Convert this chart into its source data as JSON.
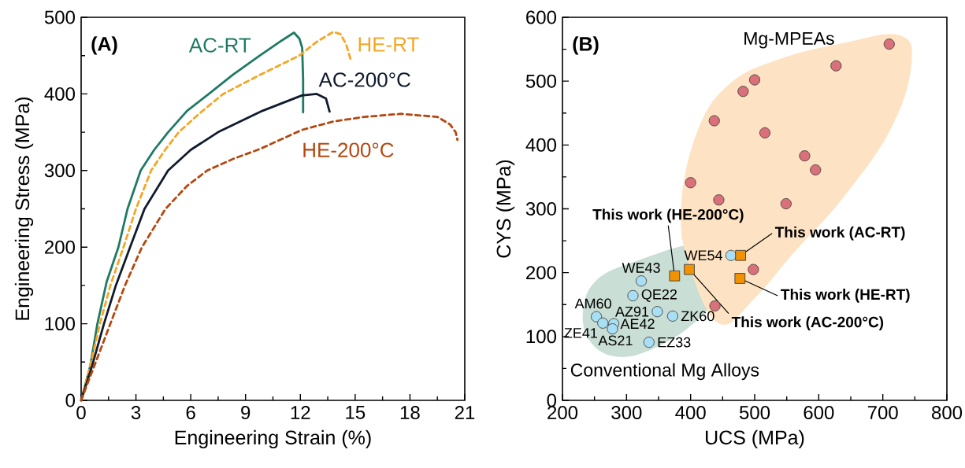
{
  "chart_data": [
    {
      "type": "line",
      "title": "(A)",
      "xlabel": "Engineering Strain (%)",
      "ylabel": "Engineering Stress (MPa)",
      "xlim": [
        0,
        21
      ],
      "ylim": [
        0,
        500
      ],
      "xticks": [
        0,
        {
          "value": 1.5,
          "label": null
        },
        3,
        {
          "value": 4.5,
          "label": null
        },
        6,
        {
          "value": 7.5,
          "label": null
        },
        9,
        {
          "value": 10.5,
          "label": null
        },
        12,
        {
          "value": 13.5,
          "label": null
        },
        15,
        {
          "value": 16.5,
          "label": null
        },
        18,
        {
          "value": 19.5,
          "label": null
        },
        21
      ],
      "yticks": [
        0,
        {
          "value": 50,
          "label": null
        },
        100,
        {
          "value": 150,
          "label": null
        },
        200,
        {
          "value": 250,
          "label": null
        },
        300,
        {
          "value": 350,
          "label": null
        },
        400,
        {
          "value": 450,
          "label": null
        },
        500
      ],
      "series": [
        {
          "name": "AC-RT",
          "color": "#1f7a64",
          "line_style": "solid",
          "x": [
            0,
            0.5,
            0.89,
            1.4,
            2.04,
            2.54,
            3.26,
            4.0,
            4.76,
            5.8,
            6.99,
            8.3,
            9.78,
            11.0,
            11.65,
            11.95,
            12.1,
            12.15,
            12.15
          ],
          "values": [
            0,
            45,
            100,
            155,
            200,
            250,
            300,
            327,
            350,
            378,
            400,
            425,
            450,
            470,
            480,
            472,
            460,
            420,
            376
          ]
        },
        {
          "name": "HE-RT",
          "color": "#f5a623",
          "line_style": "dashed",
          "x": [
            0,
            0.5,
            1.03,
            1.6,
            2.32,
            3.0,
            3.83,
            4.6,
            5.34,
            6.5,
            7.78,
            9.8,
            11.94,
            12.9,
            13.8,
            14.2,
            14.5,
            14.75
          ],
          "values": [
            0,
            45,
            100,
            150,
            200,
            250,
            300,
            327,
            350,
            375,
            400,
            425,
            450,
            468,
            481,
            478,
            465,
            445
          ]
        },
        {
          "name": "AC-200°C",
          "color": "#111a2e",
          "line_style": "solid",
          "x": [
            0,
            0.6,
            1.25,
            1.9,
            2.68,
            3.47,
            4.76,
            6.0,
            7.49,
            9.93,
            12.08,
            12.9,
            13.4,
            13.6
          ],
          "values": [
            0,
            45,
            100,
            150,
            200,
            250,
            300,
            327,
            350,
            378,
            398,
            400,
            394,
            377
          ]
        },
        {
          "name": "HE-200°C",
          "color": "#b5470f",
          "line_style": "dashed",
          "x": [
            0,
            0.8,
            1.6,
            2.4,
            3.33,
            4.62,
            5.8,
            6.9,
            8.3,
            9.78,
            12.08,
            13.8,
            15.5,
            17.5,
            19.5,
            20.2,
            20.5,
            20.6
          ],
          "values": [
            0,
            50,
            100,
            150,
            200,
            250,
            280,
            300,
            315,
            328,
            353,
            364,
            370,
            374,
            370,
            360,
            350,
            340
          ]
        }
      ]
    },
    {
      "type": "scatter",
      "title": "(B)",
      "xlabel": "UCS (MPa)",
      "ylabel": "CYS (MPa)",
      "xlim": [
        200,
        800
      ],
      "ylim": [
        0,
        600
      ],
      "xticks": [
        200,
        {
          "value": 250,
          "label": null
        },
        300,
        {
          "value": 350,
          "label": null
        },
        400,
        {
          "value": 450,
          "label": null
        },
        500,
        {
          "value": 550,
          "label": null
        },
        600,
        {
          "value": 650,
          "label": null
        },
        700,
        {
          "value": 750,
          "label": null
        },
        800
      ],
      "yticks": [
        0,
        {
          "value": 50,
          "label": null
        },
        100,
        {
          "value": 150,
          "label": null
        },
        200,
        {
          "value": 250,
          "label": null
        },
        300,
        {
          "value": 350,
          "label": null
        },
        400,
        {
          "value": 450,
          "label": null
        },
        500,
        {
          "value": 550,
          "label": null
        },
        600
      ],
      "series": [
        {
          "name": "Mg-MPEAs",
          "color": "#d9707a",
          "marker": "circle",
          "x": [
            710,
            627,
            500,
            482,
            437,
            516,
            578,
            595,
            400,
            444,
            549,
            498,
            438
          ],
          "values": [
            558,
            524,
            502,
            484,
            438,
            419,
            383,
            361,
            341,
            314,
            308,
            205,
            148
          ]
        },
        {
          "name": "Conventional Mg Alloys",
          "color": "#a9dff5",
          "marker": "circle",
          "x": [
            463,
            323,
            310,
            348,
            372,
            253,
            263,
            280,
            278,
            335
          ],
          "values": [
            227,
            187,
            164,
            139,
            132,
            131,
            121,
            120,
            112,
            91
          ]
        },
        {
          "color": "#f39200",
          "marker": "square",
          "x": [
            478,
            477,
            375,
            398
          ],
          "values": [
            227,
            191,
            195,
            205
          ]
        }
      ],
      "annotations": [
        {
          "text": "WE54",
          "x": 463,
          "y": 227
        },
        {
          "text": "WE43",
          "x": 323,
          "y": 187
        },
        {
          "text": "QE22",
          "x": 310,
          "y": 164
        },
        {
          "text": "AZ91",
          "x": 348,
          "y": 139
        },
        {
          "text": "ZK60",
          "x": 372,
          "y": 132
        },
        {
          "text": "AM60",
          "x": 253,
          "y": 131
        },
        {
          "text": "ZE41",
          "x": 263,
          "y": 121
        },
        {
          "text": "AE42",
          "x": 280,
          "y": 120
        },
        {
          "text": "AS21",
          "x": 278,
          "y": 112
        },
        {
          "text": "EZ33",
          "x": 335,
          "y": 91
        },
        {
          "text": "This work (AC-RT)",
          "x": 478,
          "y": 227
        },
        {
          "text": "This work (HE-RT)",
          "x": 477,
          "y": 191
        },
        {
          "text": "This work (AC-200°C)",
          "x": 398,
          "y": 205
        },
        {
          "text": "This work (HE-200°C)",
          "x": 375,
          "y": 195
        }
      ]
    }
  ]
}
